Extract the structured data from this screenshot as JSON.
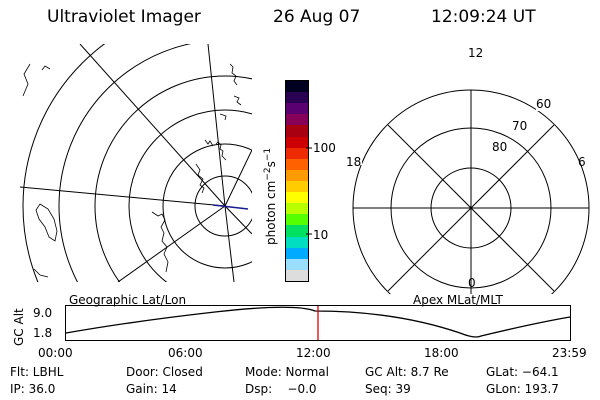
{
  "header": {
    "title": "Ultraviolet Imager",
    "date": "26 Aug 07",
    "time": "12:09:24 UT"
  },
  "geo_panel": {
    "caption": "Geographic Lat/Lon"
  },
  "polar_panel": {
    "caption": "Apex MLat/MLT",
    "mlt_labels": {
      "top": "12",
      "left": "18",
      "right": "6",
      "bottom": "0"
    },
    "lat_labels": [
      "60",
      "70",
      "80"
    ]
  },
  "colorbar": {
    "unit_label": "photon cm",
    "unit_exp1": "−2",
    "unit_mid": "s",
    "unit_exp2": "−1",
    "tick_high": "100",
    "tick_low": "10",
    "colors": [
      "#000020",
      "#2a0052",
      "#5a0070",
      "#86005a",
      "#a80010",
      "#cc0000",
      "#ee2a00",
      "#ff6000",
      "#ff9a00",
      "#ffcc00",
      "#ffff00",
      "#b8ff00",
      "#55ff00",
      "#00e060",
      "#00ddc0",
      "#00aaff",
      "#99ddff",
      "#dddddd"
    ]
  },
  "orbit": {
    "axis_label": "GC Alt",
    "y_ticks": [
      "9.0",
      "1.8"
    ],
    "x_ticks": [
      "00:00",
      "06:00",
      "12:00",
      "18:00",
      "23:59"
    ],
    "marker_fraction": 0.5
  },
  "footer": {
    "row1": [
      "Flt: LBHL",
      "Door: Closed",
      "Mode: Normal",
      "GC Alt: 8.7 Re",
      "GLat: −64.1"
    ],
    "row2": [
      "IP: 36.0",
      "Gain: 14",
      "Dsp:    −0.0",
      "Seq: 39",
      "GLon: 193.7"
    ]
  }
}
